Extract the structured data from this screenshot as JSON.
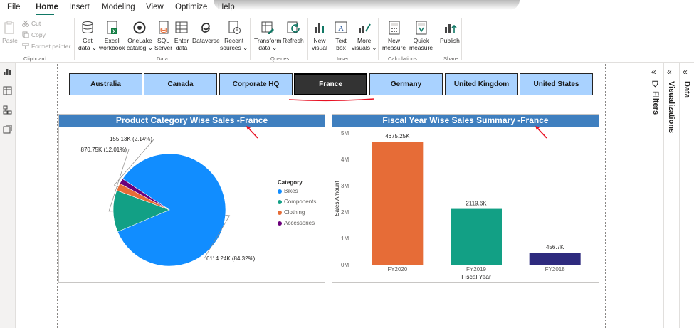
{
  "menu": {
    "items": [
      "File",
      "Home",
      "Insert",
      "Modeling",
      "View",
      "Optimize",
      "Help"
    ],
    "active": "Home"
  },
  "ribbon": {
    "clipboard": {
      "paste": "Paste",
      "cut": "Cut",
      "copy": "Copy",
      "format_painter": "Format painter",
      "group": "Clipboard"
    },
    "data": {
      "get_data": [
        "Get",
        "data ⌄"
      ],
      "excel": [
        "Excel",
        "workbook"
      ],
      "onelake": [
        "OneLake",
        "catalog ⌄"
      ],
      "sql": [
        "SQL",
        "Server"
      ],
      "enter": [
        "Enter",
        "data"
      ],
      "dataverse": [
        "Dataverse"
      ],
      "recent": [
        "Recent",
        "sources ⌄"
      ],
      "group": "Data"
    },
    "queries": {
      "transform": [
        "Transform",
        "data ⌄"
      ],
      "refresh": [
        "Refresh"
      ],
      "group": "Queries"
    },
    "insert": {
      "new_visual": [
        "New",
        "visual"
      ],
      "text_box": [
        "Text",
        "box"
      ],
      "more_visuals": [
        "More",
        "visuals ⌄"
      ],
      "group": "Insert"
    },
    "calculations": {
      "new_measure": [
        "New",
        "measure"
      ],
      "quick_measure": [
        "Quick",
        "measure"
      ],
      "group": "Calculations"
    },
    "share": {
      "publish": [
        "Publish"
      ],
      "group": "Share"
    }
  },
  "slicer": {
    "options": [
      "Australia",
      "Canada",
      "Corporate HQ",
      "France",
      "Germany",
      "United Kingdom",
      "United States"
    ],
    "selected": "France"
  },
  "pie_visual": {
    "title": "Product Category Wise Sales -France",
    "legend_title": "Category",
    "colors": {
      "Bikes": "#118dff",
      "Components": "#12a085",
      "Clothing": "#e66c37",
      "Accessories": "#6b007b"
    }
  },
  "bar_visual": {
    "title": "Fiscal Year Wise Sales Summary -France",
    "colors": [
      "#e66c37",
      "#12a085",
      "#2e2a7e"
    ]
  },
  "chart_data": [
    {
      "type": "pie",
      "title": "Product Category Wise Sales -France",
      "legend_title": "Category",
      "slices": [
        {
          "name": "Bikes",
          "value": 6114.24,
          "label": "6114.24K (84.32%)"
        },
        {
          "name": "Components",
          "value": 870.75,
          "label": "870.75K (12.01%)"
        },
        {
          "name": "Clothing",
          "value": 155.13,
          "label": "155.13K (2.14%)"
        },
        {
          "name": "Accessories",
          "value": 111.0,
          "label": ""
        }
      ],
      "legend_position": "right"
    },
    {
      "type": "bar",
      "title": "Fiscal Year Wise Sales Summary -France",
      "categories": [
        "FY2020",
        "FY2019",
        "FY2018"
      ],
      "values": [
        4675.25,
        2119.6,
        456.7
      ],
      "data_labels": [
        "4675.25K",
        "2119.6K",
        "456.7K"
      ],
      "xlabel": "Fiscal Year",
      "ylabel": "Sales Amount",
      "ylim": [
        0,
        5000
      ],
      "yticks": [
        "0M",
        "1M",
        "2M",
        "3M",
        "4M",
        "5M"
      ],
      "grid": false
    }
  ],
  "panes": {
    "filters": "Filters",
    "visualizations": "Visualizations",
    "data": "Data"
  }
}
